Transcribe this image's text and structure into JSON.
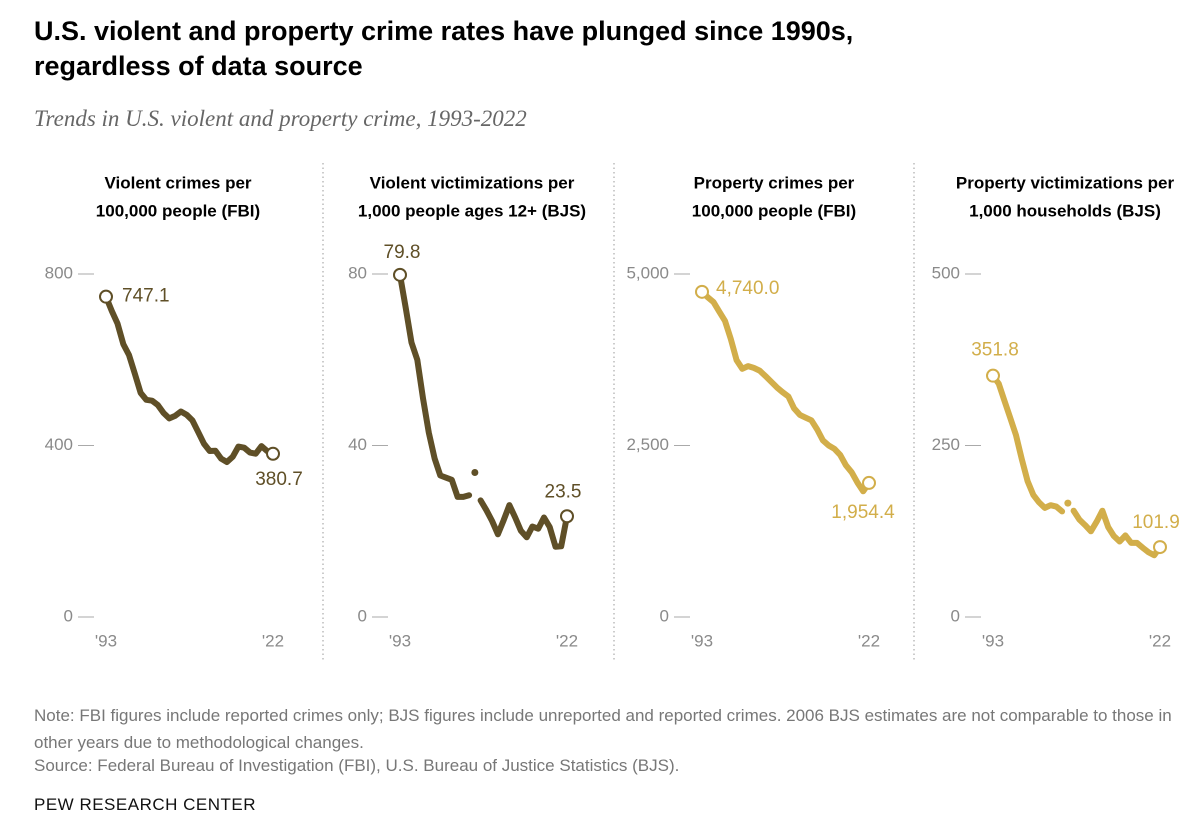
{
  "title": [
    "U.S. violent and property crime rates have plunged since 1990s,",
    "regardless of data source"
  ],
  "subtitle": "Trends in U.S. violent and property crime, 1993-2022",
  "note": "Note: FBI figures include reported crimes only; BJS figures include unreported and reported crimes. 2006 BJS estimates are not comparable to those in other years due to methodological changes.",
  "source": "Source: Federal Bureau of Investigation (FBI), U.S. Bureau of Justice Statistics (BJS).",
  "credit": "PEW RESEARCH CENTER",
  "chart_data": [
    {
      "type": "line",
      "title": [
        "Violent crimes per",
        "100,000 people (FBI)"
      ],
      "color": "#5f4f27",
      "x": [
        1993,
        1994,
        1995,
        1996,
        1997,
        1998,
        1999,
        2000,
        2001,
        2002,
        2003,
        2004,
        2005,
        2006,
        2007,
        2008,
        2009,
        2010,
        2011,
        2012,
        2013,
        2014,
        2015,
        2016,
        2017,
        2018,
        2019,
        2020,
        2021,
        2022
      ],
      "xlim": [
        1993,
        2022
      ],
      "xticks": [
        {
          "value": 1993,
          "label": "'93"
        },
        {
          "value": 2022,
          "label": "'22"
        }
      ],
      "ylim": [
        0,
        800
      ],
      "yticks": [
        0,
        400,
        800
      ],
      "series": [
        {
          "values": [
            747.1,
            713.6,
            684.5,
            636.6,
            611.0,
            567.6,
            523.0,
            506.5,
            504.5,
            494.4,
            475.8,
            463.2,
            469.0,
            479.3,
            471.8,
            458.6,
            431.9,
            404.5,
            387.1,
            387.8,
            369.1,
            361.6,
            373.7,
            397.5,
            394.9,
            383.4,
            380.8,
            398.5,
            387.0,
            380.7
          ]
        }
      ]
    },
    {
      "type": "line",
      "title": [
        "Violent victimizations per",
        "1,000 people ages 12+ (BJS)"
      ],
      "color": "#5f4f27",
      "x": [
        1993,
        1994,
        1995,
        1996,
        1997,
        1998,
        1999,
        2000,
        2001,
        2002,
        2003,
        2004,
        2005,
        2006,
        2007,
        2008,
        2009,
        2010,
        2011,
        2012,
        2013,
        2014,
        2015,
        2016,
        2017,
        2018,
        2019,
        2020,
        2021,
        2022
      ],
      "xlim": [
        1993,
        2022
      ],
      "xticks": [
        {
          "value": 1993,
          "label": "'93"
        },
        {
          "value": 2022,
          "label": "'22"
        }
      ],
      "ylim": [
        0,
        80
      ],
      "yticks": [
        0,
        40,
        80
      ],
      "series": [
        {
          "values": [
            79.8,
            72,
            64,
            60,
            51,
            43,
            37,
            33,
            32.5,
            32,
            28,
            28,
            28.4,
            null,
            27.2,
            24.9,
            22.4,
            19.3,
            22.6,
            26.1,
            23.2,
            20.1,
            18.6,
            21.1,
            20.6,
            23.2,
            21.0,
            16.4,
            16.5,
            23.5
          ]
        },
        {
          "values": [
            null,
            null,
            null,
            null,
            null,
            null,
            null,
            null,
            null,
            null,
            null,
            null,
            null,
            33.7,
            null,
            null,
            null,
            null,
            null,
            null,
            null,
            null,
            null,
            null,
            null,
            null,
            null,
            null,
            null,
            null
          ]
        }
      ]
    },
    {
      "type": "line",
      "title": [
        "Property crimes per",
        "100,000 people (FBI)"
      ],
      "color": "#d2ae4a",
      "x": [
        1993,
        1994,
        1995,
        1996,
        1997,
        1998,
        1999,
        2000,
        2001,
        2002,
        2003,
        2004,
        2005,
        2006,
        2007,
        2008,
        2009,
        2010,
        2011,
        2012,
        2013,
        2014,
        2015,
        2016,
        2017,
        2018,
        2019,
        2020,
        2021,
        2022
      ],
      "xlim": [
        1993,
        2022
      ],
      "xticks": [
        {
          "value": 1993,
          "label": "'93"
        },
        {
          "value": 2022,
          "label": "'22"
        }
      ],
      "ylim": [
        0,
        5000
      ],
      "yticks": [
        0,
        {
          "value": 2500,
          "label": "2,500"
        },
        {
          "value": 5000,
          "label": "5,000"
        }
      ],
      "series": [
        {
          "values": [
            4740.0,
            4660.2,
            4590.5,
            4451.0,
            4316.3,
            4052.5,
            3743.6,
            3618.3,
            3658.1,
            3630.6,
            3591.2,
            3514.1,
            3431.5,
            3346.6,
            3276.4,
            3214.6,
            3041.3,
            2945.9,
            2905.4,
            2868.0,
            2733.6,
            2574.1,
            2500.5,
            2451.6,
            2362.9,
            2209.8,
            2109.9,
            1958.2,
            1832.3,
            1954.4
          ],
          "value_labels": [
            "4,740.0",
            null,
            null,
            null,
            null,
            null,
            null,
            null,
            null,
            null,
            null,
            null,
            null,
            null,
            null,
            null,
            null,
            null,
            null,
            null,
            null,
            null,
            null,
            null,
            null,
            null,
            null,
            null,
            null,
            "1,954.4"
          ]
        }
      ]
    },
    {
      "type": "line",
      "title": [
        "Property victimizations per",
        "1,000 households (BJS)"
      ],
      "color": "#d2ae4a",
      "x": [
        1993,
        1994,
        1995,
        1996,
        1997,
        1998,
        1999,
        2000,
        2001,
        2002,
        2003,
        2004,
        2005,
        2006,
        2007,
        2008,
        2009,
        2010,
        2011,
        2012,
        2013,
        2014,
        2015,
        2016,
        2017,
        2018,
        2019,
        2020,
        2021,
        2022
      ],
      "xlim": [
        1993,
        2022
      ],
      "xticks": [
        {
          "value": 1993,
          "label": "'93"
        },
        {
          "value": 2022,
          "label": "'22"
        }
      ],
      "ylim": [
        0,
        500
      ],
      "yticks": [
        0,
        250,
        500
      ],
      "series": [
        {
          "values": [
            351.8,
            340,
            315,
            290,
            265,
            230,
            198,
            178,
            167,
            159,
            163,
            161,
            154,
            null,
            155,
            142,
            134,
            125,
            139,
            155,
            131,
            118,
            110,
            119,
            108,
            108,
            101,
            94.5,
            90,
            101.9
          ]
        },
        {
          "values": [
            null,
            null,
            null,
            null,
            null,
            null,
            null,
            null,
            null,
            null,
            null,
            null,
            null,
            166,
            null,
            null,
            null,
            null,
            null,
            null,
            null,
            null,
            null,
            null,
            null,
            null,
            null,
            null,
            null,
            null
          ]
        }
      ]
    }
  ]
}
